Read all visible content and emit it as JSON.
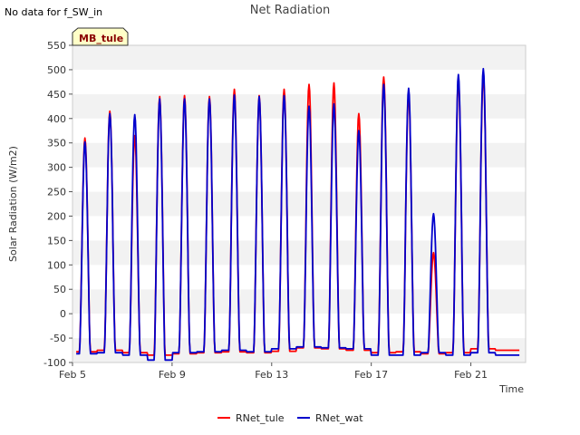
{
  "note": "No data for f_SW_in",
  "site_badge": "MB_tule",
  "chart_data": {
    "type": "line",
    "title": "Net Radiation",
    "xlabel": "Time",
    "ylabel": "Solar Radiation (W/m2)",
    "ylim": [
      -100,
      550
    ],
    "yticks": [
      -100,
      -50,
      0,
      50,
      100,
      150,
      200,
      250,
      300,
      350,
      400,
      450,
      500,
      550
    ],
    "xlim": [
      0,
      18.2
    ],
    "xticks": [
      {
        "value": 0,
        "label": "Feb 5"
      },
      {
        "value": 4,
        "label": "Feb 9"
      },
      {
        "value": 8,
        "label": "Feb 13"
      },
      {
        "value": 12,
        "label": "Feb 17"
      },
      {
        "value": 16,
        "label": "Feb 21"
      }
    ],
    "grid": "horizontal bands",
    "legend_position": "bottom-center",
    "day_offset_of_peak": 0.5,
    "series": [
      {
        "name": "RNet_tule",
        "color": "#ff0000",
        "night": [
          -78,
          -75,
          -80,
          -85,
          -82,
          -80,
          -78,
          -80,
          -77,
          -70,
          -72,
          -75,
          -80,
          -78,
          -82,
          -80,
          -72,
          -75,
          -80
        ],
        "peaks": [
          360,
          415,
          365,
          445,
          447,
          445,
          460,
          447,
          460,
          470,
          473,
          410,
          485,
          450,
          125,
          480,
          490
        ]
      },
      {
        "name": "RNet_wat",
        "color": "#0000cc",
        "night": [
          -82,
          -80,
          -85,
          -95,
          -80,
          -78,
          -75,
          -78,
          -72,
          -68,
          -70,
          -72,
          -85,
          -85,
          -80,
          -85,
          -80,
          -85,
          -82
        ],
        "peaks": [
          352,
          410,
          408,
          440,
          440,
          440,
          448,
          445,
          447,
          425,
          430,
          375,
          470,
          462,
          205,
          490,
          502
        ]
      }
    ]
  }
}
